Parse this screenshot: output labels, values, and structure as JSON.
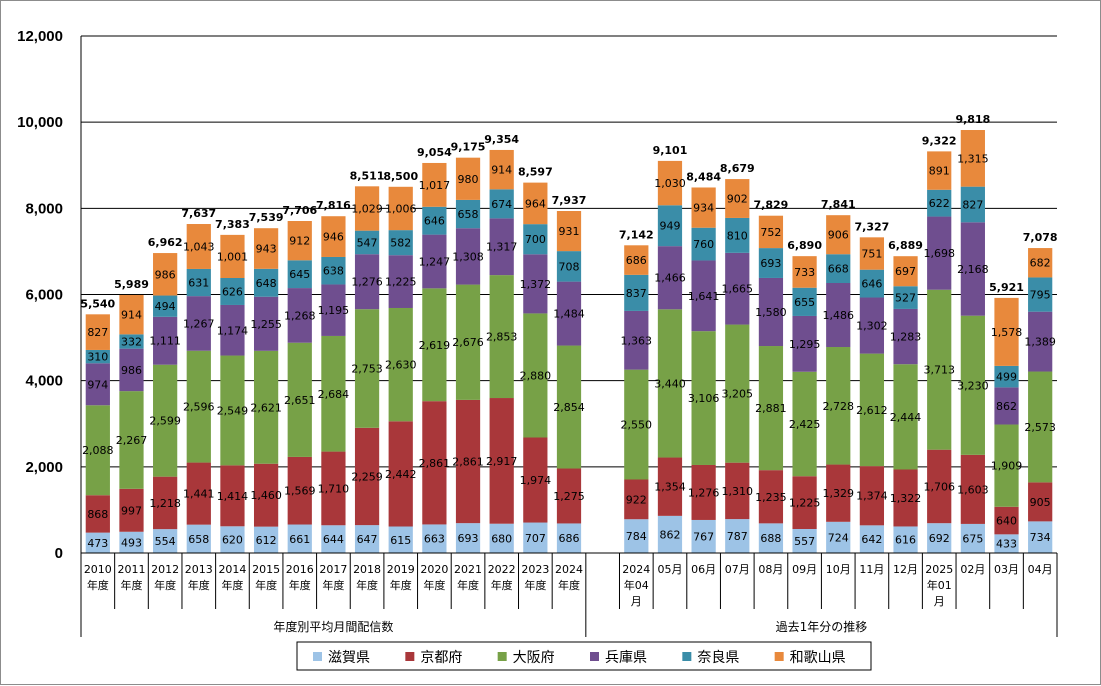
{
  "chart_data": {
    "type": "bar",
    "stacked": true,
    "title": "",
    "xlabel": "",
    "ylabel": "",
    "ylim": [
      0,
      12000
    ],
    "yticks": [
      "0",
      "2,000",
      "4,000",
      "6,000",
      "8,000",
      "10,000",
      "12,000"
    ],
    "grid": true,
    "legend_position": "bottom",
    "categories": [
      [
        "2010",
        "年度"
      ],
      [
        "2011",
        "年度"
      ],
      [
        "2012",
        "年度"
      ],
      [
        "2013",
        "年度"
      ],
      [
        "2014",
        "年度"
      ],
      [
        "2015",
        "年度"
      ],
      [
        "2016",
        "年度"
      ],
      [
        "2017",
        "年度"
      ],
      [
        "2018",
        "年度"
      ],
      [
        "2019",
        "年度"
      ],
      [
        "2020",
        "年度"
      ],
      [
        "2021",
        "年度"
      ],
      [
        "2022",
        "年度"
      ],
      [
        "2023",
        "年度"
      ],
      [
        "2024",
        "年度"
      ],
      [
        "",
        ""
      ],
      [
        "2024",
        "年04",
        "月"
      ],
      [
        "05月"
      ],
      [
        "06月"
      ],
      [
        "07月"
      ],
      [
        "08月"
      ],
      [
        "09月"
      ],
      [
        "10月"
      ],
      [
        "11月"
      ],
      [
        "12月"
      ],
      [
        "2025",
        "年01",
        "月"
      ],
      [
        "02月"
      ],
      [
        "03月"
      ],
      [
        "04月"
      ]
    ],
    "groups": [
      {
        "label": "年度別平均月間配信数"
      },
      {
        "label": "過去1年分の推移"
      }
    ],
    "series": [
      {
        "name": "滋賀県",
        "color": "#9DC3E6",
        "values": [
          473,
          493,
          554,
          658,
          620,
          612,
          661,
          644,
          647,
          615,
          663,
          693,
          680,
          707,
          686,
          null,
          784,
          862,
          767,
          787,
          688,
          557,
          724,
          642,
          616,
          692,
          675,
          433,
          734
        ]
      },
      {
        "name": "京都府",
        "color": "#A9373A",
        "values": [
          868,
          997,
          1218,
          1441,
          1414,
          1460,
          1569,
          1710,
          2259,
          2442,
          2861,
          2861,
          2917,
          1974,
          1275,
          null,
          922,
          1354,
          1276,
          1310,
          1235,
          1225,
          1329,
          1374,
          1322,
          1706,
          1603,
          640,
          905
        ]
      },
      {
        "name": "大阪府",
        "color": "#77A147",
        "values": [
          2088,
          2267,
          2599,
          2596,
          2549,
          2621,
          2651,
          2684,
          2753,
          2630,
          2619,
          2676,
          2853,
          2880,
          2854,
          null,
          2550,
          3440,
          3106,
          3205,
          2881,
          2425,
          2728,
          2612,
          2444,
          3713,
          3230,
          1909,
          2573
        ]
      },
      {
        "name": "兵庫県",
        "color": "#6F4E8F",
        "values": [
          974,
          986,
          1111,
          1267,
          1174,
          1255,
          1268,
          1195,
          1276,
          1225,
          1247,
          1308,
          1317,
          1372,
          1484,
          null,
          1363,
          1466,
          1641,
          1665,
          1580,
          1295,
          1486,
          1302,
          1283,
          1698,
          2168,
          862,
          1389
        ]
      },
      {
        "name": "奈良県",
        "color": "#3A8DA8",
        "values": [
          310,
          332,
          494,
          631,
          626,
          648,
          645,
          638,
          547,
          582,
          646,
          658,
          674,
          700,
          708,
          null,
          837,
          949,
          760,
          810,
          693,
          655,
          668,
          646,
          527,
          622,
          827,
          499,
          795
        ]
      },
      {
        "name": "和歌山県",
        "color": "#E8893C",
        "values": [
          827,
          914,
          986,
          1043,
          1001,
          943,
          912,
          946,
          1029,
          1006,
          1017,
          980,
          914,
          964,
          931,
          null,
          686,
          1030,
          934,
          902,
          752,
          733,
          906,
          751,
          697,
          891,
          1315,
          1578,
          682
        ]
      }
    ],
    "totals": [
      "5,540",
      "5,989",
      "6,962",
      "7,637",
      "7,383",
      "7,539",
      "7,706",
      "7,816",
      "8,511",
      "8,500",
      "9,054",
      "9,175",
      "9,354",
      "8,597",
      "7,937",
      "",
      "7,142",
      "9,101",
      "8,484",
      "8,679",
      "7,829",
      "6,890",
      "7,841",
      "7,327",
      "6,889",
      "9,322",
      "9,818",
      "5,921",
      "7,078"
    ]
  }
}
